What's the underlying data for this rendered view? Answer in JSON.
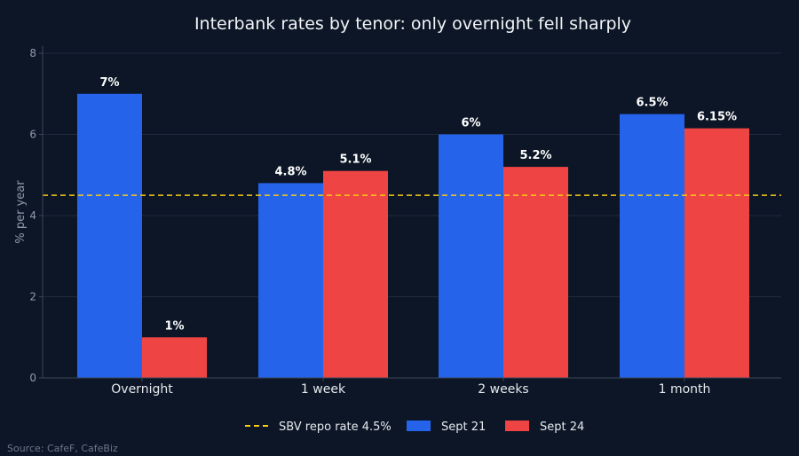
{
  "colors": {
    "background": "#0c1626",
    "sept21": "#2563eb",
    "sept24": "#ef4444",
    "repo_line": "#facc15",
    "grid": "#1f2b3d",
    "axis": "#3a4658"
  },
  "source": "Source: CafeF, CafeBiz",
  "chart_data": {
    "type": "bar",
    "title": "Interbank rates by tenor: only overnight fell sharply",
    "xlabel": "",
    "ylabel": "% per year",
    "categories": [
      "Overnight",
      "1 week",
      "2 weeks",
      "1 month"
    ],
    "ylim": [
      0,
      8
    ],
    "yticks": [
      "0",
      "2",
      "4",
      "6",
      "8"
    ],
    "grid": true,
    "legend_position": "bottom-center",
    "series": [
      {
        "name": "Sept 21",
        "values": [
          7,
          4.8,
          6,
          6.5
        ],
        "labels": [
          "7%",
          "4.8%",
          "6%",
          "6.5%"
        ]
      },
      {
        "name": "Sept 24",
        "values": [
          1,
          5.1,
          5.2,
          6.15
        ],
        "labels": [
          "1%",
          "5.1%",
          "5.2%",
          "6.15%"
        ]
      }
    ],
    "reference_line": {
      "name": "SBV repo rate 4.5%",
      "value": 4.5,
      "style": "dashed"
    }
  }
}
